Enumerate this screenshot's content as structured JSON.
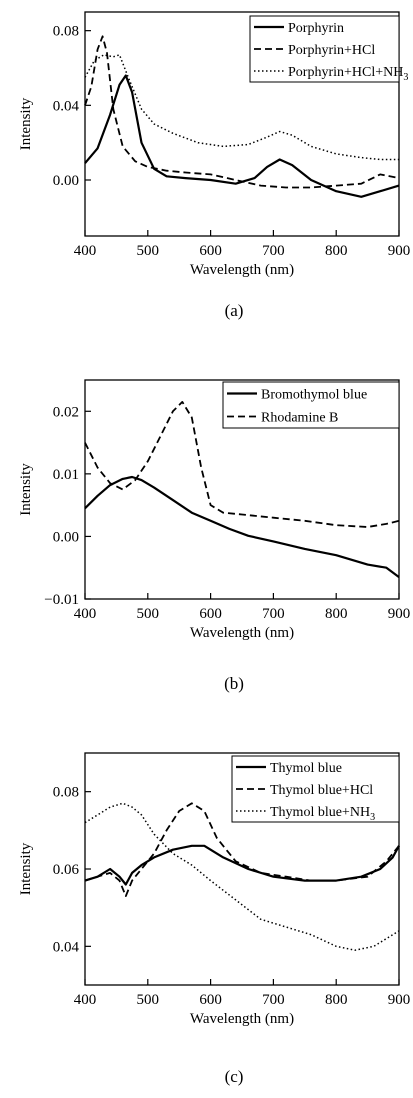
{
  "chart_data": [
    {
      "type": "line",
      "caption": "(a)",
      "xlabel": "Wavelength (nm)",
      "ylabel": "Intensity",
      "xlim": [
        400,
        900
      ],
      "ylim": [
        -0.03,
        0.09
      ],
      "xticks": [
        400,
        500,
        600,
        700,
        800,
        900
      ],
      "yticks": [
        0.0,
        0.04,
        0.08
      ],
      "ytick_labels": [
        "0.00",
        "0.04",
        "0.08"
      ],
      "legend_position": "top-right",
      "series": [
        {
          "name": "Porphyrin",
          "style": "solid",
          "x": [
            400,
            420,
            440,
            455,
            465,
            475,
            490,
            510,
            530,
            560,
            600,
            640,
            670,
            690,
            710,
            730,
            760,
            800,
            840,
            870,
            900
          ],
          "y": [
            0.009,
            0.017,
            0.035,
            0.051,
            0.056,
            0.047,
            0.02,
            0.006,
            0.002,
            0.001,
            0.0,
            -0.002,
            0.001,
            0.007,
            0.011,
            0.008,
            0.0,
            -0.006,
            -0.009,
            -0.006,
            -0.003
          ]
        },
        {
          "name": "Porphyrin+HCl",
          "style": "dashed",
          "x": [
            400,
            410,
            420,
            428,
            435,
            445,
            460,
            480,
            500,
            530,
            560,
            600,
            640,
            680,
            720,
            760,
            800,
            840,
            870,
            900
          ],
          "y": [
            0.04,
            0.05,
            0.07,
            0.077,
            0.068,
            0.038,
            0.018,
            0.01,
            0.007,
            0.005,
            0.004,
            0.003,
            0.0,
            -0.003,
            -0.004,
            -0.004,
            -0.003,
            -0.002,
            0.003,
            0.001
          ]
        },
        {
          "name": "Porphyrin+HCl+NH3",
          "style": "dotted",
          "x": [
            400,
            415,
            430,
            445,
            455,
            470,
            490,
            510,
            540,
            580,
            620,
            660,
            690,
            710,
            730,
            760,
            800,
            840,
            870,
            900
          ],
          "y": [
            0.055,
            0.064,
            0.067,
            0.066,
            0.067,
            0.054,
            0.038,
            0.03,
            0.025,
            0.02,
            0.018,
            0.019,
            0.023,
            0.026,
            0.024,
            0.018,
            0.014,
            0.012,
            0.011,
            0.011
          ]
        }
      ]
    },
    {
      "type": "line",
      "caption": "(b)",
      "xlabel": "Wavelength (nm)",
      "ylabel": "Intensity",
      "xlim": [
        400,
        900
      ],
      "ylim": [
        -0.01,
        0.025
      ],
      "xticks": [
        400,
        500,
        600,
        700,
        800,
        900
      ],
      "yticks": [
        -0.01,
        0.0,
        0.01,
        0.02
      ],
      "ytick_labels": [
        "-0.01",
        "0.00",
        "0.01",
        "0.02"
      ],
      "legend_position": "top-right",
      "series": [
        {
          "name": "Bromothymol blue",
          "style": "solid",
          "x": [
            400,
            420,
            440,
            460,
            475,
            490,
            510,
            540,
            570,
            600,
            630,
            660,
            700,
            750,
            800,
            850,
            880,
            900
          ],
          "y": [
            0.0045,
            0.0065,
            0.0082,
            0.0092,
            0.0095,
            0.009,
            0.0078,
            0.0058,
            0.0038,
            0.0025,
            0.0012,
            0.0001,
            -0.0008,
            -0.002,
            -0.003,
            -0.0045,
            -0.005,
            -0.0065
          ]
        },
        {
          "name": "Rhodamine B",
          "style": "dashed",
          "x": [
            400,
            420,
            440,
            460,
            480,
            500,
            520,
            540,
            555,
            570,
            585,
            600,
            620,
            650,
            700,
            750,
            800,
            850,
            880,
            900
          ],
          "y": [
            0.015,
            0.011,
            0.0085,
            0.0075,
            0.009,
            0.012,
            0.016,
            0.02,
            0.0215,
            0.019,
            0.011,
            0.005,
            0.0038,
            0.0035,
            0.003,
            0.0025,
            0.0018,
            0.0015,
            0.002,
            0.0025
          ]
        }
      ]
    },
    {
      "type": "line",
      "caption": "(c)",
      "xlabel": "Wavelength (nm)",
      "ylabel": "Intensity",
      "xlim": [
        400,
        900
      ],
      "ylim": [
        0.03,
        0.09
      ],
      "xticks": [
        400,
        500,
        600,
        700,
        800,
        900
      ],
      "yticks": [
        0.04,
        0.06,
        0.08
      ],
      "ytick_labels": [
        "0.04",
        "0.06",
        "0.08"
      ],
      "legend_position": "top-right",
      "series": [
        {
          "name": "Thymol blue",
          "style": "solid",
          "x": [
            400,
            420,
            440,
            455,
            465,
            475,
            490,
            510,
            540,
            570,
            590,
            620,
            660,
            700,
            750,
            800,
            840,
            870,
            890,
            900
          ],
          "y": [
            0.057,
            0.058,
            0.06,
            0.058,
            0.056,
            0.059,
            0.061,
            0.063,
            0.065,
            0.066,
            0.066,
            0.063,
            0.06,
            0.058,
            0.057,
            0.057,
            0.058,
            0.06,
            0.063,
            0.066
          ]
        },
        {
          "name": "Thymol blue+HCl",
          "style": "dashed",
          "x": [
            400,
            420,
            440,
            455,
            465,
            475,
            490,
            510,
            530,
            550,
            570,
            590,
            610,
            640,
            680,
            720,
            760,
            800,
            850,
            880,
            900
          ],
          "y": [
            0.057,
            0.058,
            0.059,
            0.057,
            0.053,
            0.057,
            0.06,
            0.064,
            0.07,
            0.075,
            0.077,
            0.075,
            0.068,
            0.062,
            0.059,
            0.058,
            0.057,
            0.057,
            0.058,
            0.062,
            0.066
          ]
        },
        {
          "name": "Thymol blue+NH3",
          "style": "dotted",
          "x": [
            400,
            420,
            440,
            460,
            475,
            490,
            510,
            540,
            570,
            600,
            640,
            680,
            720,
            760,
            800,
            830,
            860,
            880,
            900
          ],
          "y": [
            0.072,
            0.074,
            0.076,
            0.077,
            0.076,
            0.074,
            0.069,
            0.064,
            0.061,
            0.057,
            0.052,
            0.047,
            0.045,
            0.043,
            0.04,
            0.039,
            0.04,
            0.042,
            0.044
          ]
        }
      ]
    }
  ]
}
